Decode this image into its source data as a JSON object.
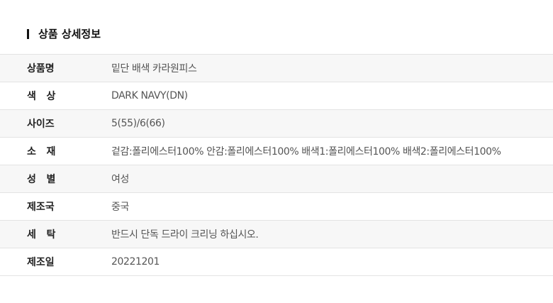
{
  "title": "상품 상세정보",
  "rows": [
    {
      "label": "상품명",
      "value": "밑단 배색 카라원피스"
    },
    {
      "label": "색   상",
      "value": "DARK NAVY(DN)"
    },
    {
      "label": "사이즈",
      "value": "5(55)/6(66)"
    },
    {
      "label": "소   재",
      "value": "겉감:폴리에스터100% 안감:폴리에스터100% 배색1:폴리에스터100% 배색2:폴리에스터100%"
    },
    {
      "label": "성   별",
      "value": "여성"
    },
    {
      "label": "제조국",
      "value": "중국"
    },
    {
      "label": "세   탁",
      "value": "반드시 단독 드라이 크리닝 하십시오."
    },
    {
      "label": "제조일",
      "value": "20221201"
    }
  ]
}
